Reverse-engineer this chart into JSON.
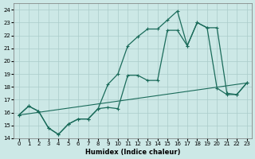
{
  "xlabel": "Humidex (Indice chaleur)",
  "ylabel": "",
  "bg_color": "#cce8e6",
  "grid_color": "#aaccca",
  "line_color": "#1a6b5a",
  "xlim": [
    -0.5,
    23.5
  ],
  "ylim": [
    14,
    24.5
  ],
  "yticks": [
    14,
    15,
    16,
    17,
    18,
    19,
    20,
    21,
    22,
    23,
    24
  ],
  "xticks": [
    0,
    1,
    2,
    3,
    4,
    5,
    6,
    7,
    8,
    9,
    10,
    11,
    12,
    13,
    14,
    15,
    16,
    17,
    18,
    19,
    20,
    21,
    22,
    23
  ],
  "series1_x": [
    0,
    1,
    2,
    3,
    4,
    5,
    6,
    7,
    8,
    9,
    10,
    11,
    12,
    13,
    14,
    15,
    16,
    17,
    18,
    19,
    20,
    21,
    22,
    23
  ],
  "series1_y": [
    15.8,
    16.5,
    16.1,
    14.8,
    14.3,
    15.1,
    15.5,
    15.5,
    16.3,
    18.2,
    19.0,
    21.2,
    21.9,
    22.5,
    22.5,
    23.2,
    23.9,
    21.2,
    23.0,
    22.6,
    22.6,
    17.5,
    17.4,
    18.3
  ],
  "series2_x": [
    0,
    1,
    2,
    3,
    4,
    5,
    6,
    7,
    8,
    9,
    10,
    11,
    12,
    13,
    14,
    15,
    16,
    17,
    18,
    19,
    20,
    21,
    22,
    23
  ],
  "series2_y": [
    15.8,
    16.5,
    16.1,
    14.8,
    14.3,
    15.1,
    15.5,
    15.5,
    16.3,
    16.4,
    16.3,
    18.9,
    18.9,
    18.5,
    18.5,
    22.4,
    22.4,
    21.2,
    23.0,
    22.6,
    17.9,
    17.4,
    17.4,
    18.3
  ],
  "series3_x": [
    0,
    23
  ],
  "series3_y": [
    15.8,
    18.3
  ]
}
